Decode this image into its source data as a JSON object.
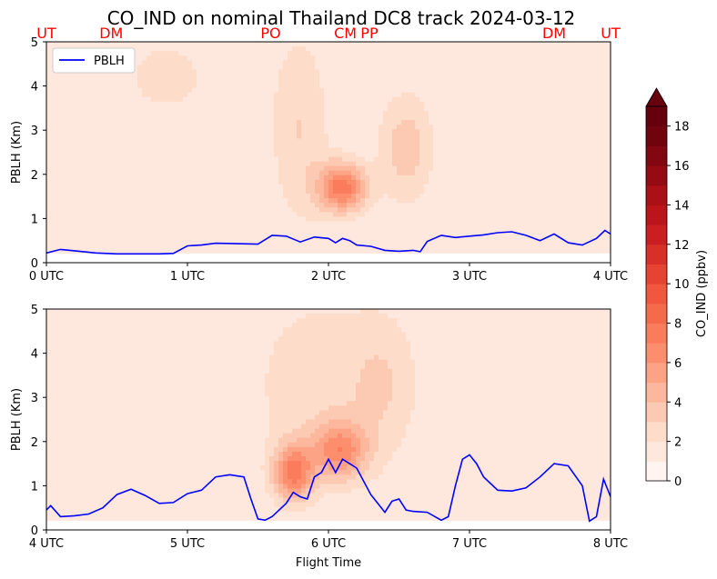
{
  "title": "CO_IND on nominal Thailand DC8 track 2024-03-12",
  "chart_data": [
    {
      "type": "area",
      "panel": "top",
      "xlabel": "",
      "ylabel": "PBLH (Km)",
      "xlim": [
        0,
        4
      ],
      "ylim": [
        0,
        5
      ],
      "x_ticks": [
        0,
        1,
        2,
        3,
        4
      ],
      "x_tick_labels": [
        "0 UTC",
        "1 UTC",
        "2 UTC",
        "3 UTC",
        "4 UTC"
      ],
      "y_ticks": [
        0,
        1,
        2,
        3,
        4,
        5
      ],
      "y_tick_labels": [
        "0",
        "1",
        "2",
        "3",
        "4",
        "5"
      ],
      "legend": {
        "placement": "upper-left",
        "entries": [
          "PBLH"
        ]
      },
      "site_labels": [
        {
          "text": "UT",
          "x": 0.0
        },
        {
          "text": "DM",
          "x": 0.46
        },
        {
          "text": "PO",
          "x": 1.59
        },
        {
          "text": "CM",
          "x": 2.12
        },
        {
          "text": "PP",
          "x": 2.29
        },
        {
          "text": "DM",
          "x": 3.6
        },
        {
          "text": "UT",
          "x": 4.0
        }
      ],
      "series": [
        {
          "name": "PBLH",
          "color": "#0000ff",
          "x": [
            0.0,
            0.1,
            0.2,
            0.35,
            0.5,
            0.6,
            0.7,
            0.8,
            0.9,
            1.0,
            1.1,
            1.2,
            1.35,
            1.5,
            1.6,
            1.7,
            1.8,
            1.9,
            2.0,
            2.05,
            2.1,
            2.15,
            2.2,
            2.3,
            2.4,
            2.5,
            2.6,
            2.65,
            2.7,
            2.8,
            2.9,
            3.0,
            3.1,
            3.2,
            3.3,
            3.4,
            3.5,
            3.6,
            3.7,
            3.8,
            3.9,
            3.96,
            4.0
          ],
          "values": [
            0.22,
            0.3,
            0.27,
            0.22,
            0.2,
            0.2,
            0.2,
            0.2,
            0.21,
            0.38,
            0.4,
            0.44,
            0.43,
            0.42,
            0.62,
            0.6,
            0.47,
            0.58,
            0.55,
            0.45,
            0.55,
            0.5,
            0.4,
            0.37,
            0.28,
            0.26,
            0.28,
            0.25,
            0.48,
            0.62,
            0.57,
            0.6,
            0.63,
            0.68,
            0.7,
            0.62,
            0.5,
            0.65,
            0.45,
            0.4,
            0.55,
            0.73,
            0.65
          ]
        }
      ],
      "contour_field": {
        "variable": "CO_IND",
        "units": "ppbv",
        "levels": [
          0,
          1,
          2,
          3,
          4,
          5,
          6,
          7,
          8,
          9,
          10,
          11,
          12,
          13,
          14,
          15,
          16,
          17,
          18,
          19
        ],
        "max_value": 7.5,
        "background_value": 1.0,
        "features": [
          {
            "x": 2.1,
            "y": 1.7,
            "peak": 7.5,
            "x_width": 0.12,
            "y_width": 0.4
          },
          {
            "x": 1.8,
            "y": 3.0,
            "peak": 3.0,
            "x_width": 0.15,
            "y_width": 1.6
          },
          {
            "x": 2.55,
            "y": 2.6,
            "peak": 3.6,
            "x_width": 0.14,
            "y_width": 0.9
          },
          {
            "x": 0.85,
            "y": 4.2,
            "peak": 2.2,
            "x_width": 0.35,
            "y_width": 1.0
          }
        ]
      }
    },
    {
      "type": "area",
      "panel": "bottom",
      "xlabel": "Flight Time",
      "ylabel": "PBLH (Km)",
      "xlim": [
        4,
        8
      ],
      "ylim": [
        0,
        5
      ],
      "x_ticks": [
        4,
        5,
        6,
        7,
        8
      ],
      "x_tick_labels": [
        "4 UTC",
        "5 UTC",
        "6 UTC",
        "7 UTC",
        "8 UTC"
      ],
      "y_ticks": [
        0,
        1,
        2,
        3,
        4,
        5
      ],
      "y_tick_labels": [
        "0",
        "1",
        "2",
        "3",
        "4",
        "5"
      ],
      "series": [
        {
          "name": "",
          "color": "#0000ff",
          "x": [
            4.0,
            4.03,
            4.1,
            4.2,
            4.3,
            4.4,
            4.5,
            4.6,
            4.7,
            4.8,
            4.9,
            5.0,
            5.1,
            5.2,
            5.3,
            5.4,
            5.45,
            5.5,
            5.55,
            5.6,
            5.7,
            5.75,
            5.8,
            5.85,
            5.9,
            5.95,
            6.0,
            6.05,
            6.1,
            6.15,
            6.2,
            6.3,
            6.4,
            6.45,
            6.5,
            6.55,
            6.6,
            6.7,
            6.8,
            6.85,
            6.9,
            6.95,
            7.0,
            7.05,
            7.1,
            7.2,
            7.3,
            7.4,
            7.5,
            7.6,
            7.7,
            7.8,
            7.85,
            7.9,
            7.95,
            8.0
          ],
          "values": [
            0.45,
            0.55,
            0.3,
            0.32,
            0.36,
            0.5,
            0.8,
            0.92,
            0.78,
            0.6,
            0.62,
            0.82,
            0.9,
            1.2,
            1.25,
            1.2,
            0.7,
            0.25,
            0.22,
            0.3,
            0.6,
            0.85,
            0.75,
            0.7,
            1.2,
            1.3,
            1.6,
            1.3,
            1.6,
            1.5,
            1.4,
            0.8,
            0.4,
            0.65,
            0.7,
            0.45,
            0.42,
            0.4,
            0.22,
            0.3,
            1.0,
            1.6,
            1.7,
            1.5,
            1.2,
            0.9,
            0.88,
            0.95,
            1.2,
            1.5,
            1.45,
            1.0,
            0.2,
            0.3,
            1.15,
            0.75
          ]
        }
      ],
      "contour_field": {
        "variable": "CO_IND",
        "units": "ppbv",
        "levels": [
          0,
          1,
          2,
          3,
          4,
          5,
          6,
          7,
          8,
          9,
          10,
          11,
          12,
          13,
          14,
          15,
          16,
          17,
          18,
          19
        ],
        "max_value": 7.0,
        "background_value": 1.0,
        "features": [
          {
            "x": 5.75,
            "y": 1.3,
            "peak": 7.0,
            "x_width": 0.1,
            "y_width": 0.45
          },
          {
            "x": 6.08,
            "y": 1.8,
            "peak": 6.0,
            "x_width": 0.14,
            "y_width": 0.45
          },
          {
            "x": 5.9,
            "y": 3.3,
            "peak": 2.6,
            "x_width": 0.35,
            "y_width": 1.6
          },
          {
            "x": 6.4,
            "y": 3.3,
            "peak": 2.6,
            "x_width": 0.18,
            "y_width": 1.2
          }
        ]
      }
    }
  ],
  "colorbar": {
    "label": "CO_IND (ppbv)",
    "min": 0,
    "max": 19,
    "extend": "max",
    "levels": [
      0,
      1,
      2,
      3,
      4,
      5,
      6,
      7,
      8,
      9,
      10,
      11,
      12,
      13,
      14,
      15,
      16,
      17,
      18,
      19
    ],
    "colors": [
      "#fff4ef",
      "#fee8dd",
      "#fddcca",
      "#fcc9b3",
      "#fcb79d",
      "#fca285",
      "#fc8e6e",
      "#fb7c5c",
      "#f66a4c",
      "#f0573e",
      "#e64332",
      "#d83028",
      "#ca1e20",
      "#bb151b",
      "#aa1016",
      "#960b13",
      "#820711",
      "#6f030e",
      "#67000d"
    ],
    "ticks": [
      0,
      2,
      4,
      6,
      8,
      10,
      12,
      14,
      16,
      18
    ],
    "tick_labels": [
      "0",
      "2",
      "4",
      "6",
      "8",
      "10",
      "12",
      "14",
      "16",
      "18"
    ]
  }
}
